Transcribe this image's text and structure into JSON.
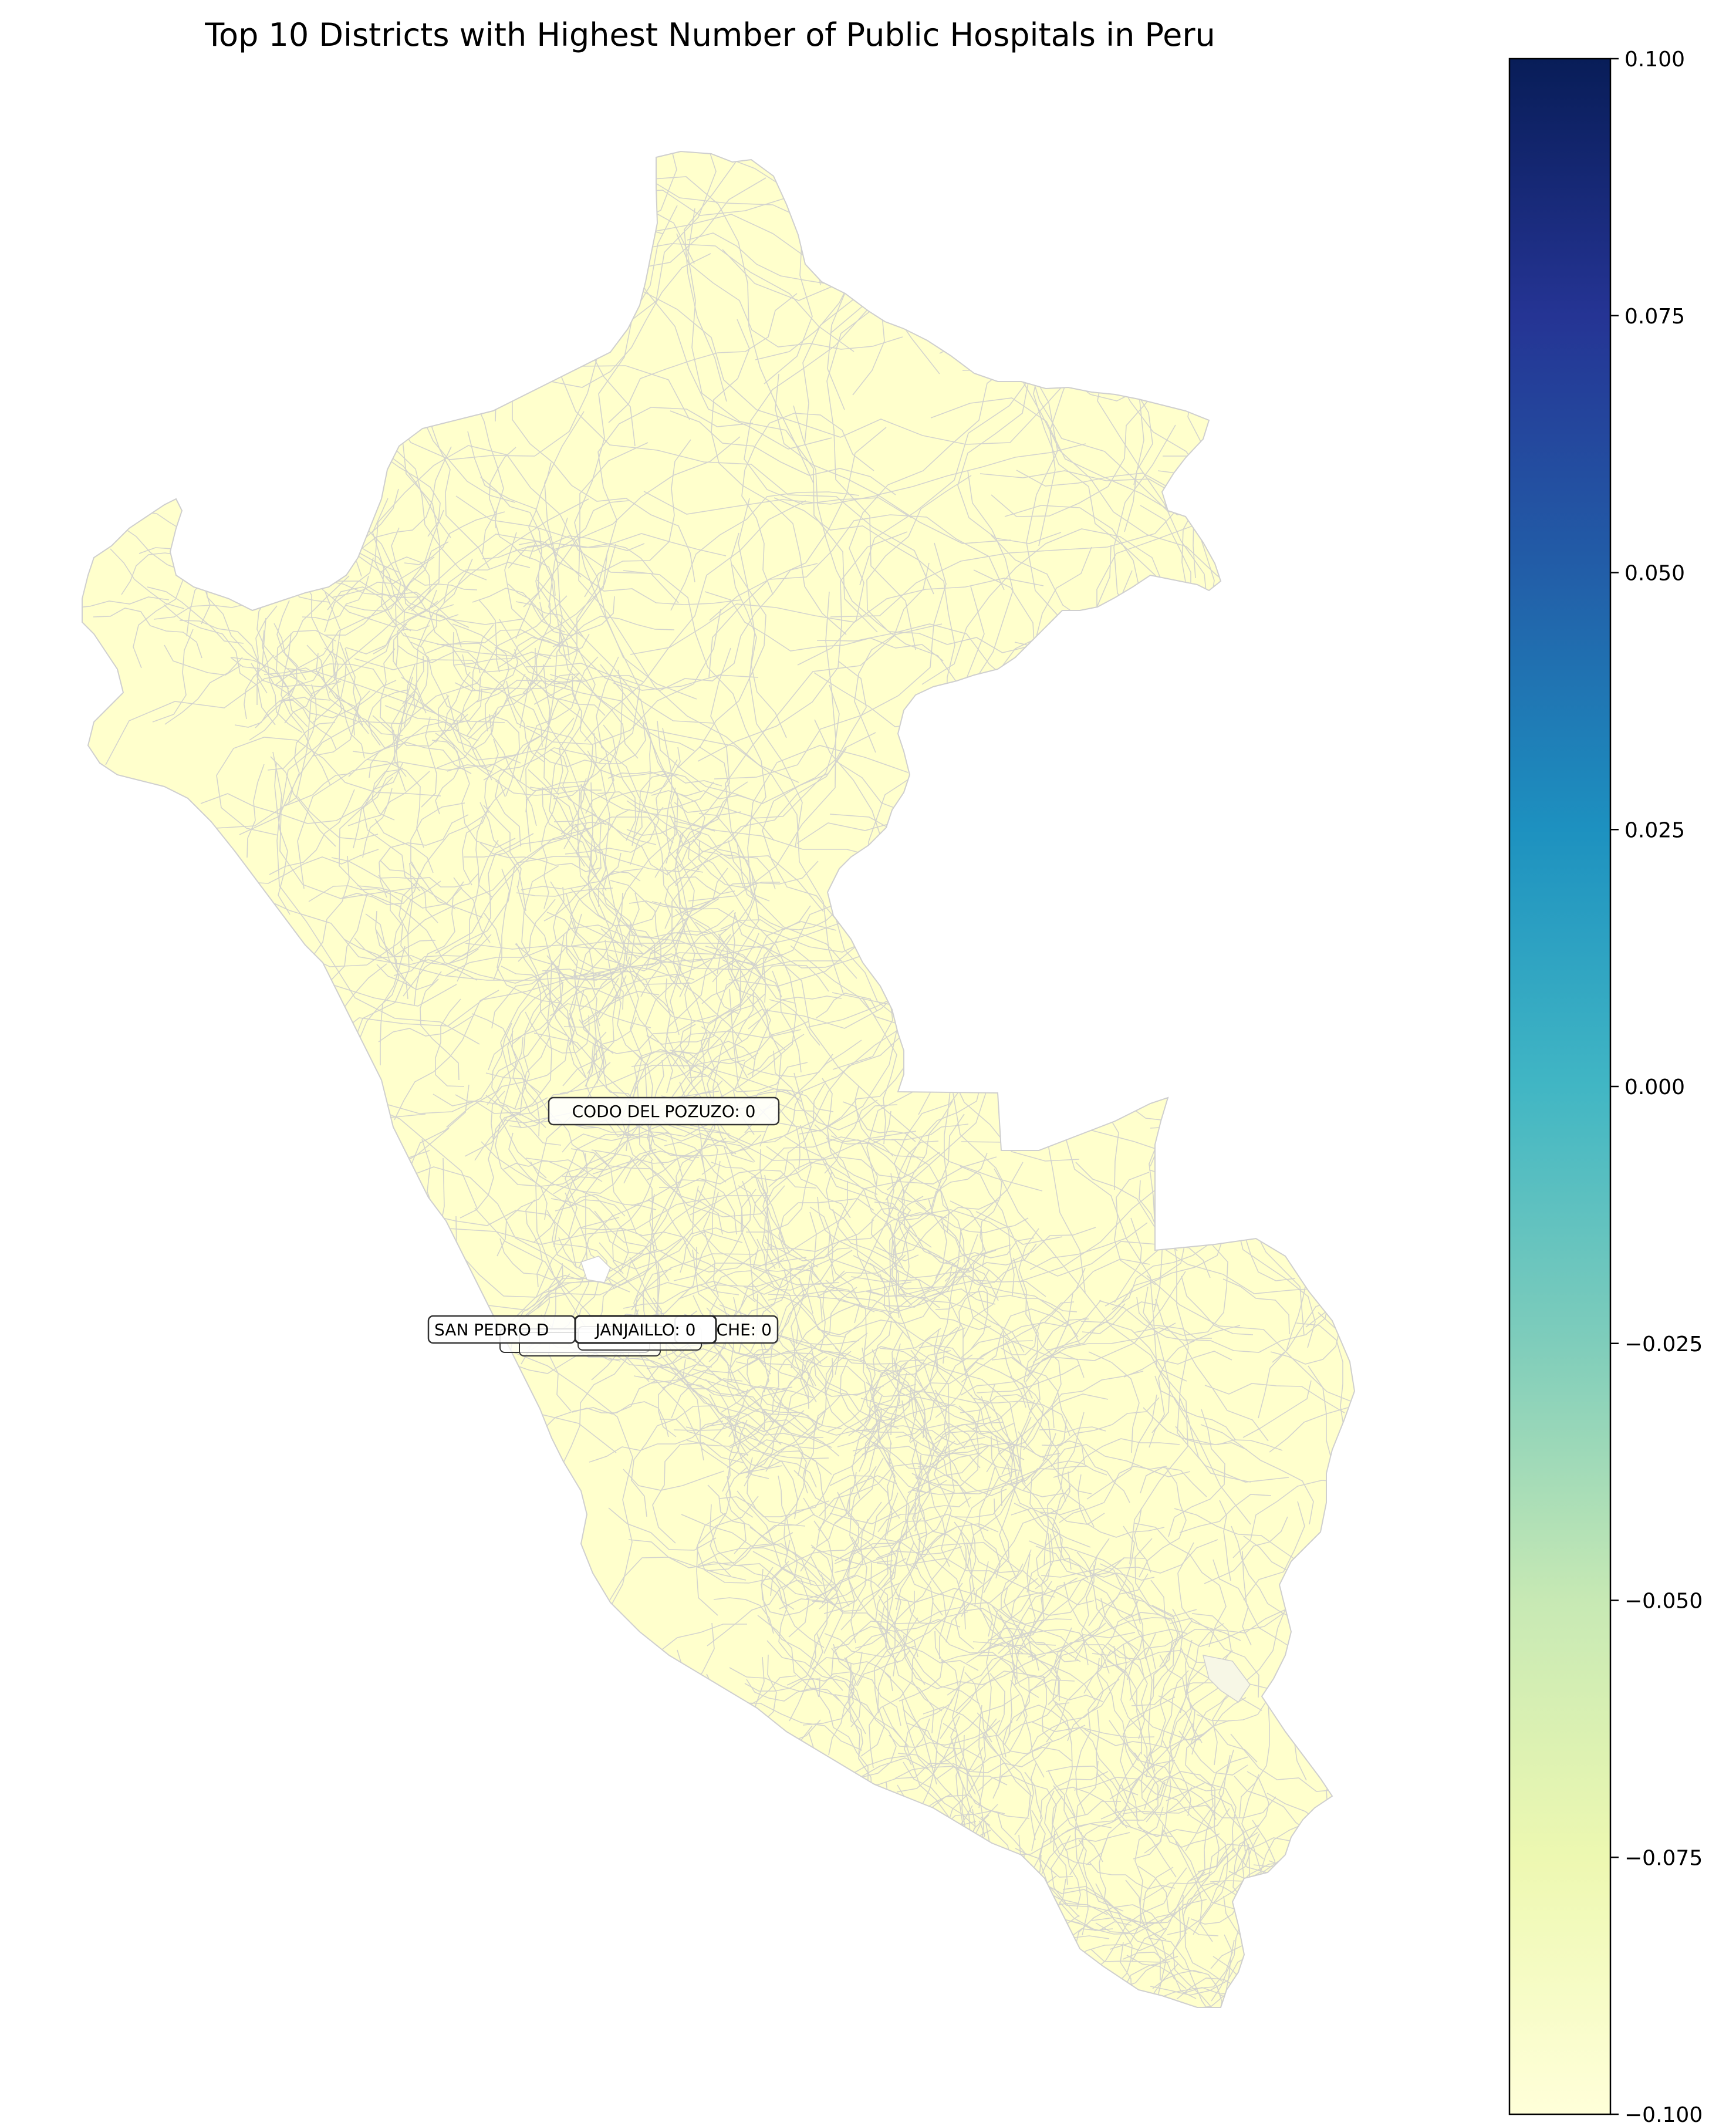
{
  "title": "Top 10 Districts with Highest Number of Public Hospitals in Peru",
  "map": {
    "fill_color": "#ffffcc",
    "border_color": "#cfcfcf"
  },
  "labels": [
    {
      "name": "CODO DEL POZUZO",
      "value": 0,
      "text": "CODO DEL POZUZO: 0"
    },
    {
      "name": "SAN PEDRO DE ...",
      "text": "SAN PEDRO D"
    },
    {
      "name": "...CHE",
      "text": "CHE: 0"
    },
    {
      "name": "JANJAILLO",
      "value": 0,
      "text": "JANJAILLO: 0"
    }
  ],
  "colorbar": {
    "colormap": "YlGnBu",
    "colors": [
      "#ffffd9",
      "#edf8b1",
      "#c7e9b4",
      "#7fcdbb",
      "#41b6c4",
      "#1d91c0",
      "#225ea8",
      "#253494",
      "#081d58"
    ],
    "range": [
      -0.1,
      0.1
    ],
    "ticks": [
      "0.100",
      "0.075",
      "0.050",
      "0.025",
      "0.000",
      "−0.025",
      "−0.050",
      "−0.075",
      "−0.100"
    ]
  }
}
